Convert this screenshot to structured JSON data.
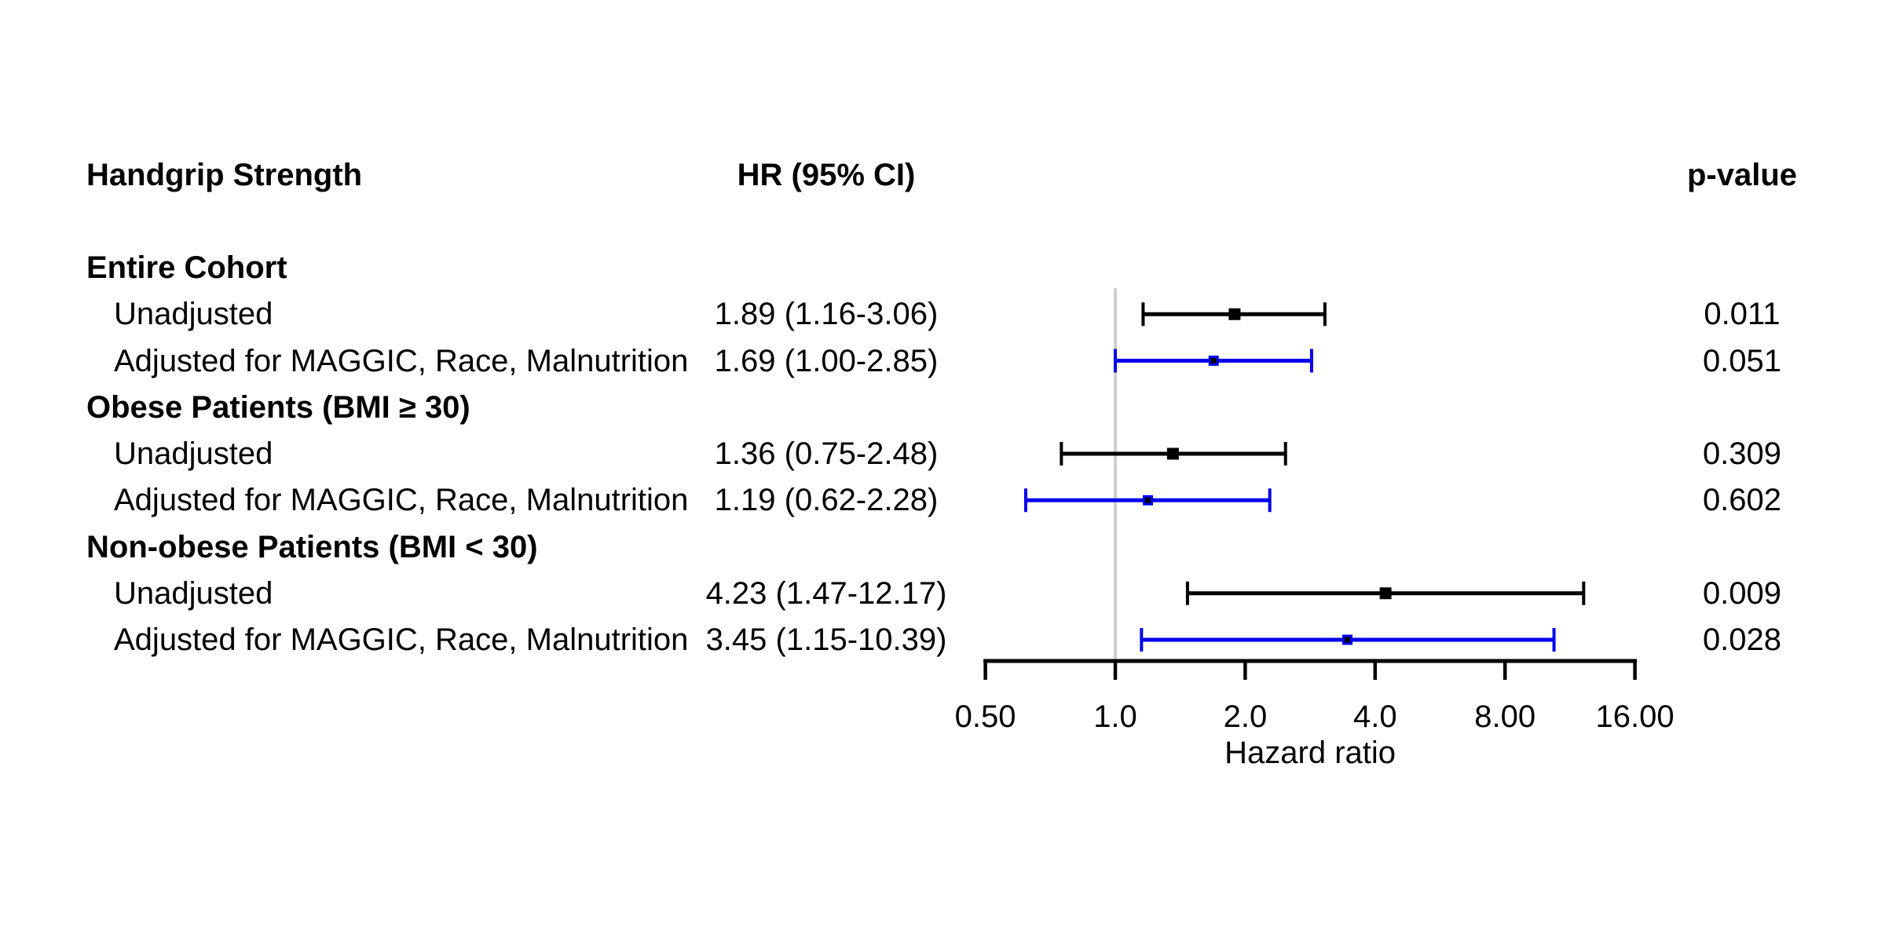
{
  "header": {
    "label_col": "Handgrip Strength",
    "hr_col": "HR (95% CI)",
    "p_col": "p-value"
  },
  "colors": {
    "black": "#000000",
    "blue": "#0000EE",
    "reference_line": "#CFCFCF",
    "axis": "#000000",
    "background": "#FFFFFF"
  },
  "chart_data": {
    "type": "scatter",
    "subtype": "forest-plot",
    "title": "",
    "xlabel": "Hazard ratio",
    "x_scale": "log2",
    "xlim": [
      0.5,
      16
    ],
    "reference_value": 1,
    "grid": false,
    "legend": "none",
    "x_ticks": [
      {
        "value": 0.5,
        "label": "0.50"
      },
      {
        "value": 1,
        "label": "1.0"
      },
      {
        "value": 2,
        "label": "2.0"
      },
      {
        "value": 4,
        "label": "4.0"
      },
      {
        "value": 8,
        "label": "8.00"
      },
      {
        "value": 16,
        "label": "16.00"
      }
    ],
    "rows": [
      {
        "type": "group",
        "label": "Entire Cohort"
      },
      {
        "type": "estimate",
        "label": "Unadjusted",
        "hr": 1.89,
        "ci_low": 1.16,
        "ci_high": 3.06,
        "hr_text": "1.89 (1.16-3.06)",
        "p_text": "0.011",
        "color": "black"
      },
      {
        "type": "estimate",
        "label": "Adjusted for MAGGIC, Race, Malnutrition",
        "hr": 1.69,
        "ci_low": 1.0,
        "ci_high": 2.85,
        "hr_text": "1.69 (1.00-2.85)",
        "p_text": "0.051",
        "color": "blue"
      },
      {
        "type": "group",
        "label": "Obese Patients (BMI ≥ 30)"
      },
      {
        "type": "estimate",
        "label": "Unadjusted",
        "hr": 1.36,
        "ci_low": 0.75,
        "ci_high": 2.48,
        "hr_text": "1.36 (0.75-2.48)",
        "p_text": "0.309",
        "color": "black"
      },
      {
        "type": "estimate",
        "label": "Adjusted for MAGGIC, Race, Malnutrition",
        "hr": 1.19,
        "ci_low": 0.62,
        "ci_high": 2.28,
        "hr_text": "1.19 (0.62-2.28)",
        "p_text": "0.602",
        "color": "blue"
      },
      {
        "type": "group",
        "label": "Non-obese Patients (BMI < 30)"
      },
      {
        "type": "estimate",
        "label": "Unadjusted",
        "hr": 4.23,
        "ci_low": 1.47,
        "ci_high": 12.17,
        "hr_text": "4.23 (1.47-12.17)",
        "p_text": "0.009",
        "color": "black"
      },
      {
        "type": "estimate",
        "label": "Adjusted for MAGGIC, Race, Malnutrition",
        "hr": 3.45,
        "ci_low": 1.15,
        "ci_high": 10.39,
        "hr_text": "3.45 (1.15-10.39)",
        "p_text": "0.028",
        "color": "blue"
      }
    ]
  }
}
